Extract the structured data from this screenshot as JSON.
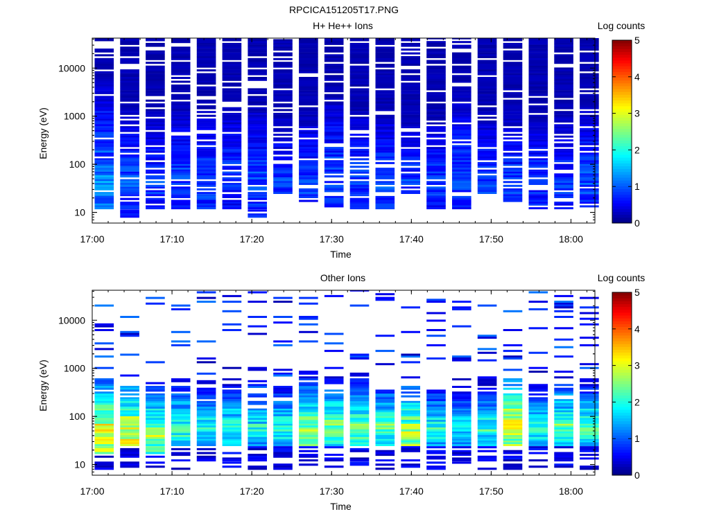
{
  "figure_title": "RPCICA151205T17.PNG",
  "colors": {
    "background": "#ffffff",
    "axis": "#000000",
    "colormap": [
      "#000080",
      "#0000ff",
      "#00ffff",
      "#ffff00",
      "#ff0000",
      "#800000"
    ]
  },
  "chart_data": [
    {
      "type": "heatmap",
      "title": "H+ He++ Ions",
      "xlabel": "Time",
      "ylabel": "Energy (eV)",
      "x_ticks": [
        "17:00",
        "17:10",
        "17:20",
        "17:30",
        "17:40",
        "17:50",
        "18:00"
      ],
      "x_tick_minutes": [
        0,
        10,
        20,
        30,
        40,
        50,
        60
      ],
      "xlim_minutes": [
        0,
        63
      ],
      "y_scale": "log",
      "y_ticks": [
        "10",
        "100",
        "1000",
        "10000"
      ],
      "y_tick_values": [
        10,
        100,
        1000,
        10000
      ],
      "ylim": [
        6,
        42000
      ],
      "colorbar": {
        "label": "Log counts",
        "ticks": [
          "0",
          "1",
          "2",
          "3",
          "4",
          "5"
        ],
        "range": [
          0,
          5
        ]
      },
      "time_bins_minutes": [
        1.5,
        4.7,
        7.9,
        11.1,
        14.3,
        17.5,
        20.7,
        23.9,
        27.1,
        30.3,
        33.5,
        36.7,
        39.9,
        43.1,
        46.3,
        49.5,
        52.7,
        55.9,
        59.1,
        62.3
      ],
      "energy_bins_eV": [
        9.5,
        14,
        20,
        29,
        41,
        59,
        85,
        122,
        175,
        251,
        361,
        518,
        745,
        1070,
        1540,
        2210,
        3170,
        4560,
        6550,
        9410,
        13500,
        19400,
        27900,
        40000
      ],
      "profiles": {
        "time_count": 20,
        "energy_min_index": [
          1,
          0,
          1,
          1,
          1,
          1,
          0,
          3,
          2,
          1,
          1,
          1,
          3,
          1,
          1,
          3,
          2,
          1,
          1,
          1
        ],
        "energy_peak_index": [
          4,
          4,
          4,
          5,
          4,
          5,
          4,
          4,
          4,
          5,
          5,
          4,
          4,
          4,
          5,
          4,
          4,
          4,
          4,
          4
        ],
        "peak_level": [
          1.4,
          1.1,
          1.0,
          1.0,
          1.1,
          1.0,
          1.1,
          1.0,
          1.0,
          1.1,
          1.0,
          1.1,
          1.0,
          1.0,
          1.1,
          1.0,
          1.0,
          1.0,
          1.0,
          1.1
        ],
        "background_level": 0.25,
        "gap_fraction": 0.16
      }
    },
    {
      "type": "heatmap",
      "title": "Other Ions",
      "xlabel": "Time",
      "ylabel": "Energy (eV)",
      "x_ticks": [
        "17:00",
        "17:10",
        "17:20",
        "17:30",
        "17:40",
        "17:50",
        "18:00"
      ],
      "x_tick_minutes": [
        0,
        10,
        20,
        30,
        40,
        50,
        60
      ],
      "xlim_minutes": [
        0,
        63
      ],
      "y_scale": "log",
      "y_ticks": [
        "10",
        "100",
        "1000",
        "10000"
      ],
      "y_tick_values": [
        10,
        100,
        1000,
        10000
      ],
      "ylim": [
        6,
        42000
      ],
      "colorbar": {
        "label": "Log counts",
        "ticks": [
          "0",
          "1",
          "2",
          "3",
          "4",
          "5"
        ],
        "range": [
          0,
          5
        ]
      },
      "time_bins_minutes": [
        1.5,
        4.7,
        7.9,
        11.1,
        14.3,
        17.5,
        20.7,
        23.9,
        27.1,
        30.3,
        33.5,
        36.7,
        39.9,
        43.1,
        46.3,
        49.5,
        52.7,
        55.9,
        59.1,
        62.3
      ],
      "energy_bins_eV": [
        9.5,
        14,
        20,
        29,
        41,
        59,
        85,
        122,
        175,
        251,
        361,
        518,
        745,
        1070,
        1540,
        2210,
        3170,
        4560,
        6550,
        9410,
        13500,
        19400,
        27900,
        40000
      ],
      "profiles": {
        "time_count": 20,
        "core_low_index": [
          2,
          3,
          2,
          3,
          3,
          3,
          3,
          3,
          3,
          3,
          3,
          3,
          3,
          3,
          3,
          3,
          3,
          3,
          3,
          3
        ],
        "core_high_index": [
          11,
          10,
          10,
          11,
          10,
          11,
          9,
          10,
          12,
          11,
          12,
          10,
          10,
          10,
          11,
          11,
          11,
          10,
          10,
          11
        ],
        "peak_index": [
          4,
          4,
          4,
          5,
          5,
          5,
          5,
          5,
          4,
          5,
          5,
          5,
          4,
          5,
          5,
          5,
          5,
          5,
          5,
          5
        ],
        "peak_level": [
          3.4,
          3.3,
          2.8,
          2.4,
          2.2,
          2.3,
          2.1,
          2.2,
          3.1,
          2.7,
          2.6,
          2.5,
          3.0,
          2.2,
          2.0,
          2.2,
          3.3,
          2.2,
          2.6,
          2.4
        ],
        "sparse_high_fraction": 0.12,
        "background_level": 0.3
      }
    }
  ]
}
